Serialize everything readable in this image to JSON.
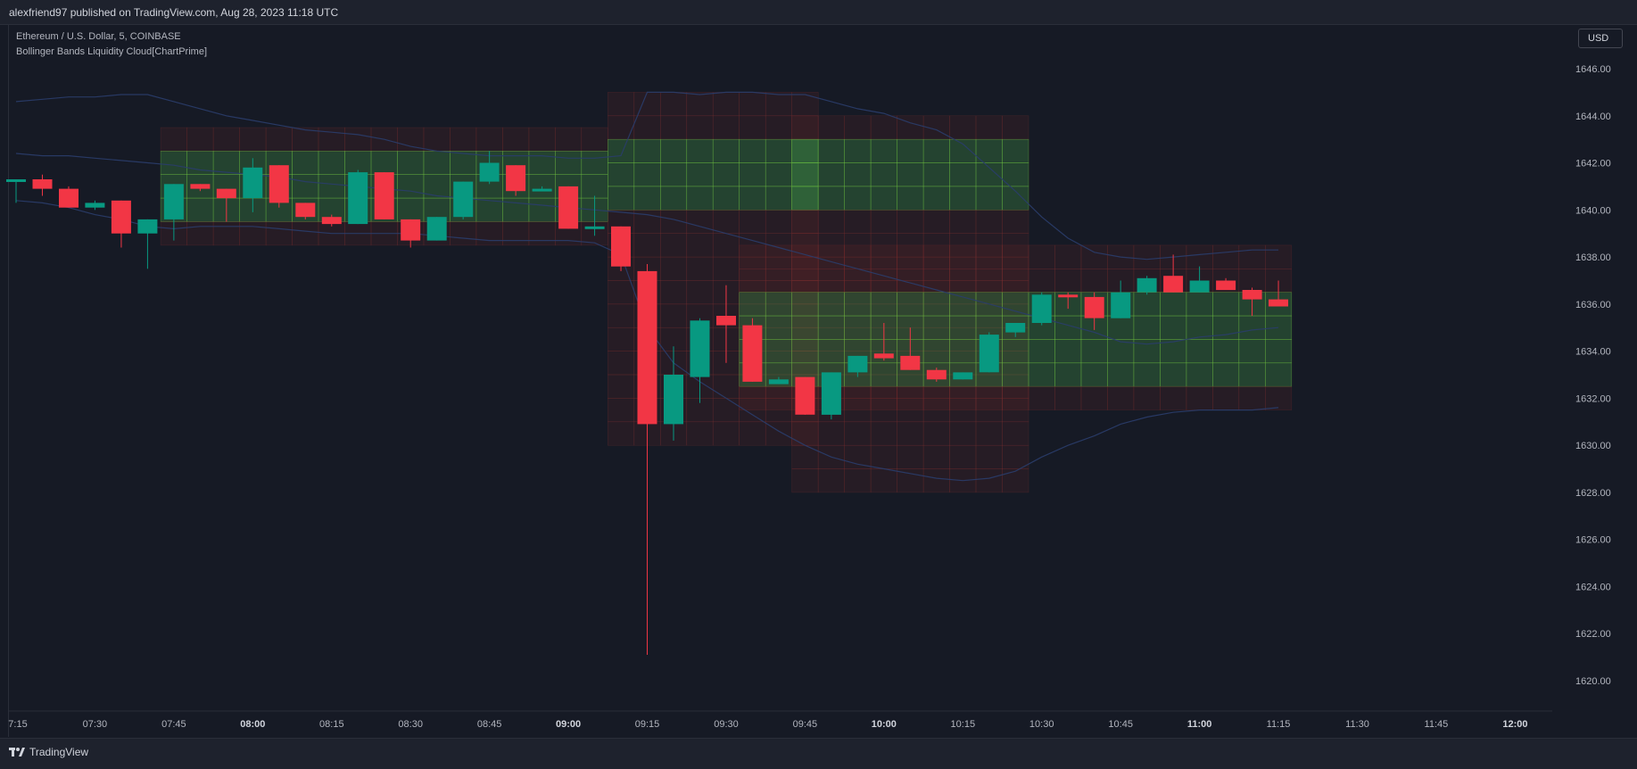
{
  "header": {
    "published_text": "alexfriend97 published on TradingView.com, Aug 28, 2023 11:18 UTC"
  },
  "legend": {
    "symbol": "Ethereum / U.S. Dollar, 5, COINBASE",
    "indicator": "Bollinger Bands Liquidity Cloud[ChartPrime]"
  },
  "currency_button": "USD",
  "footer": {
    "brand": "TradingView"
  },
  "colors": {
    "background": "#161a25",
    "up": "#089981",
    "down": "#f23645",
    "band": "#2a3d6b",
    "cloud_green": "#4caf50",
    "cloud_red": "#8b2c2c"
  },
  "chart_data": {
    "type": "candlestick",
    "title": "",
    "y_axis": {
      "ticks": [
        "1620.00",
        "1622.00",
        "1624.00",
        "1626.00",
        "1628.00",
        "1630.00",
        "1632.00",
        "1634.00",
        "1636.00",
        "1638.00",
        "1640.00",
        "1642.00",
        "1644.00",
        "1646.00"
      ],
      "ylim": [
        1618.8,
        1647.7
      ]
    },
    "x_axis": {
      "ticks": [
        "7:15",
        "07:30",
        "07:45",
        "08:00",
        "08:15",
        "08:30",
        "08:45",
        "09:00",
        "09:15",
        "09:30",
        "09:45",
        "10:00",
        "10:15",
        "10:30",
        "10:45",
        "11:00",
        "11:15",
        "11:30",
        "11:45",
        "12:00"
      ],
      "bold_ticks": [
        "08:00",
        "09:00",
        "10:00",
        "11:00",
        "12:00"
      ]
    },
    "candles": [
      {
        "t": "07:15",
        "o": 1641.2,
        "h": 1641.3,
        "l": 1640.3,
        "c": 1641.3
      },
      {
        "t": "07:20",
        "o": 1641.3,
        "h": 1641.5,
        "l": 1640.6,
        "c": 1640.9
      },
      {
        "t": "07:25",
        "o": 1640.9,
        "h": 1641.0,
        "l": 1640.1,
        "c": 1640.1
      },
      {
        "t": "07:30",
        "o": 1640.1,
        "h": 1640.4,
        "l": 1640.0,
        "c": 1640.3
      },
      {
        "t": "07:35",
        "o": 1640.4,
        "h": 1640.4,
        "l": 1638.4,
        "c": 1639.0
      },
      {
        "t": "07:40",
        "o": 1639.0,
        "h": 1639.6,
        "l": 1637.5,
        "c": 1639.6
      },
      {
        "t": "07:45",
        "o": 1639.6,
        "h": 1641.1,
        "l": 1638.7,
        "c": 1641.1
      },
      {
        "t": "07:50",
        "o": 1641.1,
        "h": 1641.1,
        "l": 1640.8,
        "c": 1640.9
      },
      {
        "t": "07:55",
        "o": 1640.9,
        "h": 1640.9,
        "l": 1639.5,
        "c": 1640.5
      },
      {
        "t": "08:00",
        "o": 1640.5,
        "h": 1642.2,
        "l": 1639.9,
        "c": 1641.8
      },
      {
        "t": "08:05",
        "o": 1641.9,
        "h": 1641.9,
        "l": 1640.1,
        "c": 1640.3
      },
      {
        "t": "08:10",
        "o": 1640.3,
        "h": 1640.3,
        "l": 1639.6,
        "c": 1639.7
      },
      {
        "t": "08:15",
        "o": 1639.7,
        "h": 1639.8,
        "l": 1639.3,
        "c": 1639.4
      },
      {
        "t": "08:20",
        "o": 1639.4,
        "h": 1641.7,
        "l": 1639.4,
        "c": 1641.6
      },
      {
        "t": "08:25",
        "o": 1641.6,
        "h": 1641.6,
        "l": 1639.6,
        "c": 1639.6
      },
      {
        "t": "08:30",
        "o": 1639.6,
        "h": 1639.6,
        "l": 1638.4,
        "c": 1638.7
      },
      {
        "t": "08:35",
        "o": 1638.7,
        "h": 1639.7,
        "l": 1638.7,
        "c": 1639.7
      },
      {
        "t": "08:40",
        "o": 1639.7,
        "h": 1641.2,
        "l": 1639.6,
        "c": 1641.2
      },
      {
        "t": "08:45",
        "o": 1641.2,
        "h": 1642.5,
        "l": 1641.1,
        "c": 1642.0
      },
      {
        "t": "08:50",
        "o": 1641.9,
        "h": 1641.9,
        "l": 1640.6,
        "c": 1640.8
      },
      {
        "t": "08:55",
        "o": 1640.8,
        "h": 1641.0,
        "l": 1640.8,
        "c": 1640.9
      },
      {
        "t": "09:00",
        "o": 1641.0,
        "h": 1641.0,
        "l": 1639.2,
        "c": 1639.2
      },
      {
        "t": "09:05",
        "o": 1639.2,
        "h": 1640.6,
        "l": 1638.9,
        "c": 1639.3
      },
      {
        "t": "09:10",
        "o": 1639.3,
        "h": 1639.3,
        "l": 1637.4,
        "c": 1637.6
      },
      {
        "t": "09:15",
        "o": 1637.4,
        "h": 1637.7,
        "l": 1621.1,
        "c": 1630.9
      },
      {
        "t": "09:20",
        "o": 1630.9,
        "h": 1634.2,
        "l": 1630.2,
        "c": 1633.0
      },
      {
        "t": "09:25",
        "o": 1632.9,
        "h": 1635.4,
        "l": 1631.8,
        "c": 1635.3
      },
      {
        "t": "09:30",
        "o": 1635.5,
        "h": 1636.8,
        "l": 1633.5,
        "c": 1635.1
      },
      {
        "t": "09:35",
        "o": 1635.1,
        "h": 1635.4,
        "l": 1632.7,
        "c": 1632.7
      },
      {
        "t": "09:40",
        "o": 1632.6,
        "h": 1632.9,
        "l": 1632.6,
        "c": 1632.8
      },
      {
        "t": "09:45",
        "o": 1632.9,
        "h": 1632.9,
        "l": 1631.3,
        "c": 1631.3
      },
      {
        "t": "09:50",
        "o": 1631.3,
        "h": 1633.1,
        "l": 1631.1,
        "c": 1633.1
      },
      {
        "t": "09:55",
        "o": 1633.1,
        "h": 1633.8,
        "l": 1632.9,
        "c": 1633.8
      },
      {
        "t": "10:00",
        "o": 1633.9,
        "h": 1635.2,
        "l": 1633.6,
        "c": 1633.7
      },
      {
        "t": "10:05",
        "o": 1633.8,
        "h": 1635.0,
        "l": 1633.2,
        "c": 1633.2
      },
      {
        "t": "10:10",
        "o": 1633.2,
        "h": 1633.3,
        "l": 1632.7,
        "c": 1632.8
      },
      {
        "t": "10:15",
        "o": 1632.8,
        "h": 1633.1,
        "l": 1632.8,
        "c": 1633.1
      },
      {
        "t": "10:20",
        "o": 1633.1,
        "h": 1634.8,
        "l": 1633.1,
        "c": 1634.7
      },
      {
        "t": "10:25",
        "o": 1634.8,
        "h": 1635.2,
        "l": 1634.6,
        "c": 1635.2
      },
      {
        "t": "10:30",
        "o": 1635.2,
        "h": 1636.5,
        "l": 1635.1,
        "c": 1636.4
      },
      {
        "t": "10:35",
        "o": 1636.4,
        "h": 1636.5,
        "l": 1635.8,
        "c": 1636.3
      },
      {
        "t": "10:40",
        "o": 1636.3,
        "h": 1636.5,
        "l": 1634.9,
        "c": 1635.4
      },
      {
        "t": "10:45",
        "o": 1635.4,
        "h": 1637.0,
        "l": 1635.4,
        "c": 1636.5
      },
      {
        "t": "10:50",
        "o": 1636.5,
        "h": 1637.2,
        "l": 1636.4,
        "c": 1637.1
      },
      {
        "t": "10:55",
        "o": 1637.2,
        "h": 1638.1,
        "l": 1636.5,
        "c": 1636.5
      },
      {
        "t": "11:00",
        "o": 1636.5,
        "h": 1637.6,
        "l": 1636.5,
        "c": 1637.0
      },
      {
        "t": "11:05",
        "o": 1637.0,
        "h": 1637.1,
        "l": 1636.6,
        "c": 1636.6
      },
      {
        "t": "11:10",
        "o": 1636.6,
        "h": 1636.7,
        "l": 1635.5,
        "c": 1636.2
      },
      {
        "t": "11:15",
        "o": 1636.2,
        "h": 1637.0,
        "l": 1635.9,
        "c": 1635.9
      }
    ],
    "bands": {
      "upper": [
        1644.6,
        1644.7,
        1644.8,
        1644.8,
        1644.9,
        1644.9,
        1644.6,
        1644.3,
        1644.0,
        1643.8,
        1643.6,
        1643.4,
        1643.3,
        1643.2,
        1643.0,
        1642.7,
        1642.5,
        1642.4,
        1642.3,
        1642.3,
        1642.3,
        1642.2,
        1642.2,
        1642.3,
        1645.0,
        1645.0,
        1644.9,
        1645.0,
        1645.0,
        1644.9,
        1644.9,
        1644.6,
        1644.3,
        1644.1,
        1643.7,
        1643.4,
        1642.8,
        1641.8,
        1640.8,
        1639.7,
        1638.8,
        1638.2,
        1638.0,
        1637.9,
        1638.0,
        1638.1,
        1638.2,
        1638.3,
        1638.3
      ],
      "middle": [
        1642.4,
        1642.3,
        1642.3,
        1642.2,
        1642.1,
        1642.0,
        1641.9,
        1641.7,
        1641.6,
        1641.5,
        1641.4,
        1641.2,
        1641.1,
        1641.0,
        1640.9,
        1640.8,
        1640.6,
        1640.5,
        1640.4,
        1640.3,
        1640.2,
        1640.1,
        1640.0,
        1639.9,
        1639.8,
        1639.6,
        1639.3,
        1639.0,
        1638.7,
        1638.4,
        1638.1,
        1637.8,
        1637.5,
        1637.2,
        1636.9,
        1636.6,
        1636.3,
        1636.0,
        1635.7,
        1635.4,
        1635.1,
        1634.8,
        1634.4,
        1634.3,
        1634.4,
        1634.6,
        1634.7,
        1634.9,
        1635.0
      ],
      "lower": [
        1640.4,
        1640.3,
        1640.1,
        1639.8,
        1639.6,
        1639.3,
        1639.2,
        1639.3,
        1639.3,
        1639.3,
        1639.2,
        1639.1,
        1639.0,
        1639.0,
        1639.0,
        1639.0,
        1638.9,
        1638.8,
        1638.7,
        1638.7,
        1638.7,
        1638.7,
        1638.6,
        1638.1,
        1635.0,
        1633.5,
        1632.7,
        1632.0,
        1631.3,
        1630.6,
        1630.0,
        1629.5,
        1629.2,
        1629.0,
        1628.8,
        1628.6,
        1628.5,
        1628.6,
        1628.9,
        1629.5,
        1630.0,
        1630.4,
        1630.9,
        1631.2,
        1631.4,
        1631.5,
        1631.5,
        1631.5,
        1631.6
      ]
    },
    "cloud": [
      {
        "from": "07:45",
        "to": "09:05",
        "low": 1638.5,
        "high": 1643.5,
        "hot_low": 1639.5,
        "hot_high": 1642.5
      },
      {
        "from": "09:10",
        "to": "09:45",
        "low": 1630.0,
        "high": 1645.0,
        "hot_low": 1640.3,
        "hot_high": 1642.6
      },
      {
        "from": "09:45",
        "to": "10:25",
        "low": 1628.5,
        "high": 1644.0,
        "hot_low": 1640.3,
        "hot_high": 1642.6
      },
      {
        "from": "09:35",
        "to": "11:15",
        "low": 1631.5,
        "high": 1638.5,
        "hot_low": 1632.2,
        "hot_high": 1636.0
      }
    ]
  }
}
